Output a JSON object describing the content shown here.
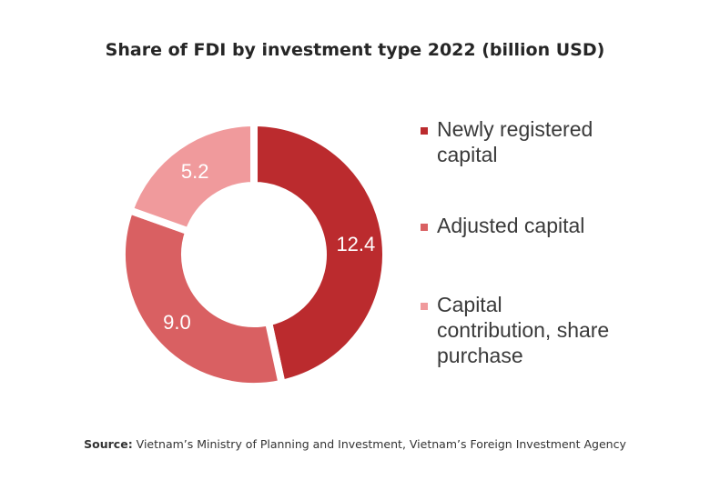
{
  "chart_data": {
    "type": "pie",
    "title": "Share of FDI by investment type 2022 (billion USD)",
    "categories": [
      "Newly registered capital",
      "Adjusted capital",
      "Capital contribution, share purchase"
    ],
    "values": [
      12.4,
      9.0,
      5.2
    ],
    "value_labels": [
      "12.4",
      "9.0",
      "5.2"
    ],
    "colors": [
      "#bb2b2e",
      "#d96062",
      "#f09a9c"
    ],
    "legend_position": "right",
    "donut": true
  },
  "source": {
    "prefix": "Source:",
    "text": " Vietnam’s Ministry of Planning and Investment, Vietnam’s Foreign Investment Agency"
  }
}
